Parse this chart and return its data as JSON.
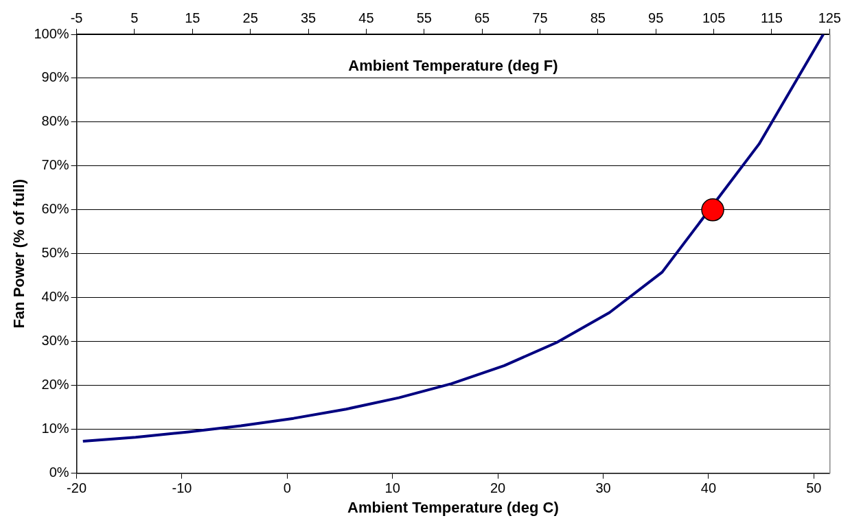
{
  "chart_data": {
    "type": "line",
    "xlabel": "Ambient Temperature (deg C)",
    "ylabel": "Fan Power (% of full)",
    "x2label": "Ambient Temperature (deg F)",
    "xlim": [
      -20,
      51.5
    ],
    "xticks": [
      -20,
      -10,
      0,
      10,
      20,
      30,
      40,
      50
    ],
    "x2lim": [
      -5,
      125
    ],
    "x2ticks": [
      -5,
      5,
      15,
      25,
      35,
      45,
      55,
      65,
      75,
      85,
      95,
      105,
      115,
      125
    ],
    "ylim": [
      0,
      100
    ],
    "yticks": [
      {
        "value": 0,
        "label": "0%"
      },
      {
        "value": 10,
        "label": "10%"
      },
      {
        "value": 20,
        "label": "20%"
      },
      {
        "value": 30,
        "label": "30%"
      },
      {
        "value": 40,
        "label": "40%"
      },
      {
        "value": 50,
        "label": "50%"
      },
      {
        "value": 60,
        "label": "60%"
      },
      {
        "value": 70,
        "label": "70%"
      },
      {
        "value": 80,
        "label": "80%"
      },
      {
        "value": 90,
        "label": "90%"
      },
      {
        "value": 100,
        "label": "100%"
      }
    ],
    "grid": "y",
    "legend": false,
    "series": [
      {
        "color": "#000080",
        "marker": "none",
        "x": [
          -19.4,
          -14.4,
          -9.4,
          -4.4,
          0.6,
          5.6,
          10.6,
          15.6,
          20.6,
          25.6,
          30.6,
          35.6,
          44.8,
          50.9
        ],
        "values": [
          7.3,
          8.2,
          9.4,
          10.8,
          12.5,
          14.6,
          17.2,
          20.4,
          24.5,
          29.8,
          36.6,
          45.8,
          75,
          100
        ]
      },
      {
        "type": "scatter",
        "color": "#ff0000",
        "marker": "circle",
        "x": [
          40.4
        ],
        "values": [
          60
        ]
      }
    ]
  }
}
